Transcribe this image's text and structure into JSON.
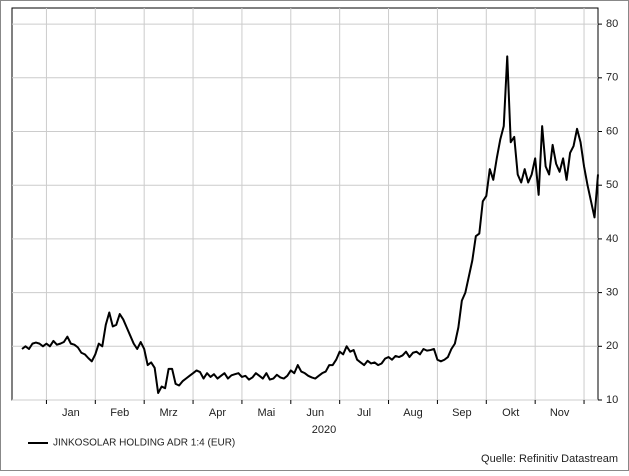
{
  "chart_data": {
    "type": "line",
    "xlabel": "2020",
    "source": "Quelle: Refinitiv Datastream",
    "categories": [
      null,
      null,
      null,
      null,
      null,
      null,
      null,
      null,
      null,
      null,
      null,
      null,
      null,
      null,
      "Jan",
      null,
      null,
      null,
      null,
      null,
      null,
      null,
      null,
      null,
      null,
      null,
      null,
      null,
      "Feb",
      null,
      null,
      null,
      null,
      null,
      null,
      null,
      null,
      null,
      null,
      null,
      null,
      null,
      "Mrz",
      null,
      null,
      null,
      null,
      null,
      null,
      null,
      null,
      null,
      null,
      null,
      null,
      null,
      "Apr",
      null,
      null,
      null,
      null,
      null,
      null,
      null,
      null,
      null,
      null,
      null,
      null,
      null,
      "Mai",
      null,
      null,
      null,
      null,
      null,
      null,
      null,
      null,
      null,
      null,
      null,
      null,
      null,
      "Jun",
      null,
      null,
      null,
      null,
      null,
      null,
      null,
      null,
      null,
      null,
      null,
      null,
      null,
      "Jul",
      null,
      null,
      null,
      null,
      null,
      null,
      null,
      null,
      null,
      null,
      null,
      null,
      null,
      "Aug",
      null,
      null,
      null,
      null,
      null,
      null,
      null,
      null,
      null,
      null,
      null,
      null,
      null,
      "Sep",
      null,
      null,
      null,
      null,
      null,
      null,
      null,
      null,
      null,
      null,
      null,
      null,
      null,
      "Okt",
      null,
      null,
      null,
      null,
      null,
      null,
      null,
      null,
      null,
      null,
      null,
      null,
      null,
      "Nov",
      null,
      null,
      null,
      null,
      null,
      null,
      null,
      null,
      null,
      null,
      null
    ],
    "series": [
      {
        "name": "JINKOSOLAR HOLDING ADR 1:4 (EUR)",
        "color": "#000000",
        "values": [
          19.5,
          20,
          19.5,
          20.5,
          20.7,
          20.5,
          20,
          20.5,
          20,
          21,
          20.3,
          20.5,
          20.8,
          21.8,
          20.5,
          20.3,
          19.8,
          18.8,
          18.5,
          17.8,
          17.2,
          18.5,
          20.5,
          20,
          24,
          26.3,
          23.7,
          24,
          26,
          25,
          23.5,
          22,
          20.5,
          19.5,
          20.8,
          19.5,
          16.5,
          17,
          16,
          11.3,
          12.5,
          12.2,
          15.8,
          15.8,
          13,
          12.7,
          13.5,
          14,
          14.5,
          15,
          15.5,
          15.2,
          14,
          15,
          14.3,
          14.8,
          14,
          14.5,
          15,
          14,
          14.6,
          14.8,
          15,
          14.3,
          14.5,
          13.8,
          14.2,
          15,
          14.5,
          14,
          15,
          13.8,
          14,
          14.7,
          14.2,
          14,
          14.5,
          15.5,
          15,
          16.5,
          15.3,
          15,
          14.5,
          14.2,
          14,
          14.5,
          15,
          15.3,
          16.5,
          16.5,
          17.5,
          19,
          18.5,
          20,
          19,
          19.3,
          17.5,
          17,
          16.5,
          17.3,
          16.8,
          17,
          16.5,
          16.8,
          17.7,
          18,
          17.5,
          18.2,
          18,
          18.3,
          19,
          18,
          18.8,
          19,
          18.5,
          19.5,
          19.2,
          19.3,
          19.5,
          17.5,
          17.2,
          17.5,
          18,
          19.5,
          20.5,
          23.5,
          28.5,
          30,
          33,
          36,
          40.5,
          41,
          47,
          48,
          53,
          51,
          55,
          58.5,
          61,
          74,
          58,
          59,
          52,
          50.5,
          53,
          50.5,
          52,
          55,
          48.2,
          61,
          53.5,
          52,
          57.5,
          54,
          52.5,
          55,
          51,
          56,
          57.3,
          60.5,
          58,
          53.5,
          50,
          47,
          44,
          52
        ]
      }
    ],
    "ylim": [
      10,
      83
    ],
    "yticks": [
      10,
      20,
      30,
      40,
      50,
      60,
      70,
      80
    ],
    "grid": true
  }
}
